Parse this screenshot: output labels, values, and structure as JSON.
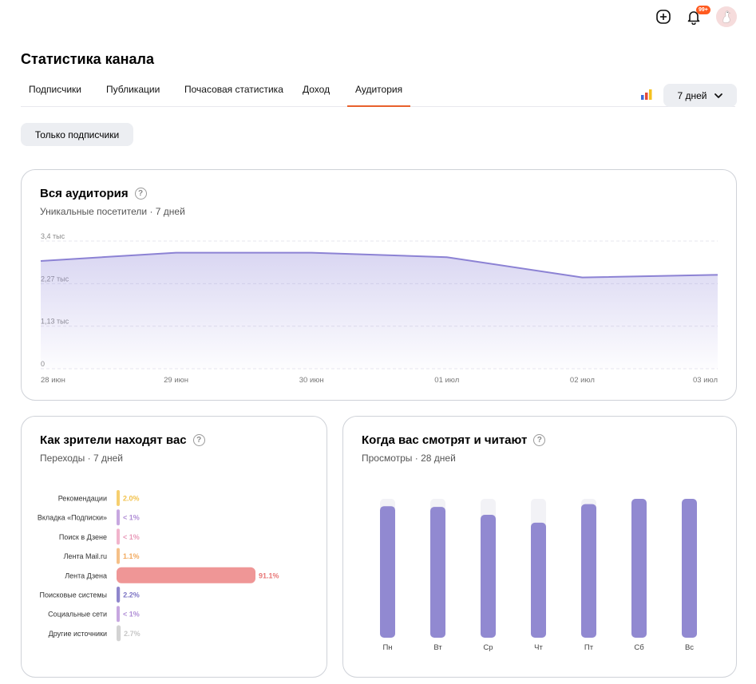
{
  "topbar": {
    "notifications_badge": "99+"
  },
  "page": {
    "title": "Статистика канала"
  },
  "tabs": [
    {
      "label": "Подписчики"
    },
    {
      "label": "Публикации"
    },
    {
      "label": "Почасовая статистика"
    },
    {
      "label": "Доход"
    },
    {
      "label": "Аудитория",
      "active": true
    }
  ],
  "period": {
    "label": "7 дней"
  },
  "filter": {
    "label": "Только подписчики"
  },
  "colors": {
    "accent": "#e8612c",
    "series_line": "#8c82d4",
    "bar_purple": "#9189d1",
    "bar_track": "#f2f2f6",
    "badge": "#ff5a1f"
  },
  "audience_card": {
    "title": "Вся аудитория",
    "subtitle": "Уникальные посетители · 7 дней",
    "chart_data": {
      "type": "area",
      "x": [
        "28 июн",
        "29 июн",
        "30 июн",
        "01 июл",
        "02 июл",
        "03 июл"
      ],
      "y_ticks": [
        "3,4 тыс",
        "2,27 тыс",
        "1,13 тыс",
        "0"
      ],
      "ylim": [
        0,
        3400
      ],
      "values": [
        2870,
        3090,
        3090,
        2970,
        2430,
        2500
      ],
      "grid": true
    }
  },
  "sources_card": {
    "title": "Как зрители находят вас",
    "subtitle": "Переходы · 7 дней",
    "chart_data": {
      "type": "bar",
      "orientation": "horizontal",
      "categories": [
        "Рекомендации",
        "Вкладка «Подписки»",
        "Поиск в Дзене",
        "Лента Mail.ru",
        "Лента Дзена",
        "Поисковые системы",
        "Социальные сети",
        "Другие источники"
      ],
      "labels": [
        "2.0%",
        "< 1%",
        "< 1%",
        "1.1%",
        "91.1%",
        "2.2%",
        "< 1%",
        "2.7%"
      ],
      "values": [
        2.0,
        0.5,
        0.5,
        1.1,
        91.1,
        2.2,
        0.5,
        2.7
      ],
      "colors": [
        "#f6cf6f",
        "#c7a7e0",
        "#f1b4cc",
        "#f5c088",
        "#ef9696",
        "#8f86cc",
        "#c7a7e0",
        "#d3d3d3"
      ]
    }
  },
  "when_card": {
    "title": "Когда вас смотрят и читают",
    "subtitle": "Просмотры · 28 дней",
    "chart_data": {
      "type": "bar",
      "categories": [
        "Пн",
        "Вт",
        "Ср",
        "Чт",
        "Пт",
        "Сб",
        "Вс"
      ],
      "values": [
        0.947,
        0.942,
        0.885,
        0.828,
        0.962,
        1.0,
        1.0
      ]
    }
  }
}
